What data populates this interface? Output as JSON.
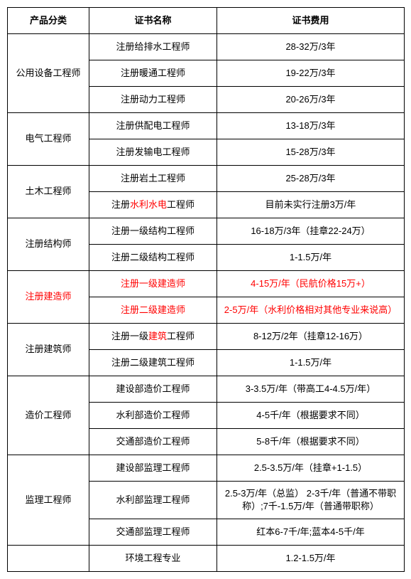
{
  "headers": {
    "category": "产品分类",
    "cert_name": "证书名称",
    "cert_fee": "证书费用"
  },
  "groups": [
    {
      "category": "公用设备工程师",
      "category_red": false,
      "rows": [
        {
          "name_pre": "注册给排水工程师",
          "name_red": "",
          "name_post": "",
          "row_red": false,
          "fee": "28-32万/3年"
        },
        {
          "name_pre": "注册暖通工程师",
          "name_red": "",
          "name_post": "",
          "row_red": false,
          "fee": "19-22万/3年"
        },
        {
          "name_pre": "注册动力工程师",
          "name_red": "",
          "name_post": "",
          "row_red": false,
          "fee": "20-26万/3年"
        }
      ]
    },
    {
      "category": "电气工程师",
      "category_red": false,
      "rows": [
        {
          "name_pre": "注册供配电工程师",
          "name_red": "",
          "name_post": "",
          "row_red": false,
          "fee": "13-18万/3年"
        },
        {
          "name_pre": "注册发输电工程师",
          "name_red": "",
          "name_post": "",
          "row_red": false,
          "fee": "15-28万/3年"
        }
      ]
    },
    {
      "category": "土木工程师",
      "category_red": false,
      "rows": [
        {
          "name_pre": "注册岩土工程师",
          "name_red": "",
          "name_post": "",
          "row_red": false,
          "fee": "25-28万/3年"
        },
        {
          "name_pre": "注册",
          "name_red": "水利水电",
          "name_post": "工程师",
          "row_red": false,
          "fee": "目前未实行注册3万/年"
        }
      ]
    },
    {
      "category": "注册结构师",
      "category_red": false,
      "rows": [
        {
          "name_pre": "注册一级结构工程师",
          "name_red": "",
          "name_post": "",
          "row_red": false,
          "fee": "16-18万/3年（挂章22-24万）"
        },
        {
          "name_pre": "注册二级结构工程师",
          "name_red": "",
          "name_post": "",
          "row_red": false,
          "fee": "1-1.5万/年"
        }
      ]
    },
    {
      "category": "注册建造师",
      "category_red": true,
      "rows": [
        {
          "name_pre": "注册一级建造师",
          "name_red": "",
          "name_post": "",
          "row_red": true,
          "fee": "4-15万/年（民航价格15万+）"
        },
        {
          "name_pre": "注册二级建造师",
          "name_red": "",
          "name_post": "",
          "row_red": true,
          "fee": "2-5万/年（水利价格相对其他专业来说高）"
        }
      ]
    },
    {
      "category": "注册建筑师",
      "category_red": false,
      "rows": [
        {
          "name_pre": "注册一级",
          "name_red": "建筑",
          "name_post": "工程师",
          "row_red": false,
          "fee": "8-12万/2年（挂章12-16万）"
        },
        {
          "name_pre": "注册二级建筑工程师",
          "name_red": "",
          "name_post": "",
          "row_red": false,
          "fee": "1-1.5万/年"
        }
      ]
    },
    {
      "category": "造价工程师",
      "category_red": false,
      "rows": [
        {
          "name_pre": "建设部造价工程师",
          "name_red": "",
          "name_post": "",
          "row_red": false,
          "fee": "3-3.5万/年（带高工4-4.5万/年）"
        },
        {
          "name_pre": "水利部造价工程师",
          "name_red": "",
          "name_post": "",
          "row_red": false,
          "fee": "4-5千/年（根据要求不同）"
        },
        {
          "name_pre": "交通部造价工程师",
          "name_red": "",
          "name_post": "",
          "row_red": false,
          "fee": "5-8千/年（根据要求不同）"
        }
      ]
    },
    {
      "category": "监理工程师",
      "category_red": false,
      "rows": [
        {
          "name_pre": "建设部监理工程师",
          "name_red": "",
          "name_post": "",
          "row_red": false,
          "fee": "2.5-3.5万/年（挂章+1-1.5）"
        },
        {
          "name_pre": "水利部监理工程师",
          "name_red": "",
          "name_post": "",
          "row_red": false,
          "fee": "2.5-3万/年（总监） 2-3千/年（普通不带职称）;7千-1.5万/年（普通带职称）"
        },
        {
          "name_pre": "交通部监理工程师",
          "name_red": "",
          "name_post": "",
          "row_red": false,
          "fee": "红本6-7千/年;蓝本4-5千/年"
        }
      ]
    },
    {
      "category": "",
      "category_red": false,
      "rows": [
        {
          "name_pre": "环境工程专业",
          "name_red": "",
          "name_post": "",
          "row_red": false,
          "fee": "1.2-1.5万/年"
        }
      ]
    }
  ]
}
